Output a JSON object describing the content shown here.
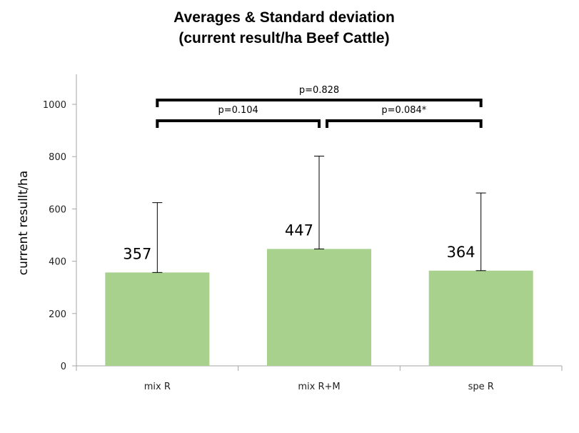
{
  "chart_data": {
    "type": "bar",
    "title_line1": "Averages & Standard deviation",
    "title_line2": "(current result/ha Beef Cattle)",
    "xlabel": "",
    "ylabel": "current resullt/ha",
    "ylim": [
      0,
      1100
    ],
    "yticks": [
      0,
      200,
      400,
      600,
      800,
      1000
    ],
    "categories": [
      "mix R",
      "mix R+M",
      "spe R"
    ],
    "values": [
      357,
      447,
      364
    ],
    "data_labels": [
      "357",
      "447",
      "364"
    ],
    "error_upper": [
      267,
      355,
      297
    ],
    "bar_color": "#a9d18e",
    "grid": false,
    "comparisons": [
      {
        "from": 0,
        "to": 2,
        "label": "p=0.828"
      },
      {
        "from": 0,
        "to": 1,
        "label": "p=0.104"
      },
      {
        "from": 1,
        "to": 2,
        "label": "p=0.084*"
      }
    ]
  }
}
